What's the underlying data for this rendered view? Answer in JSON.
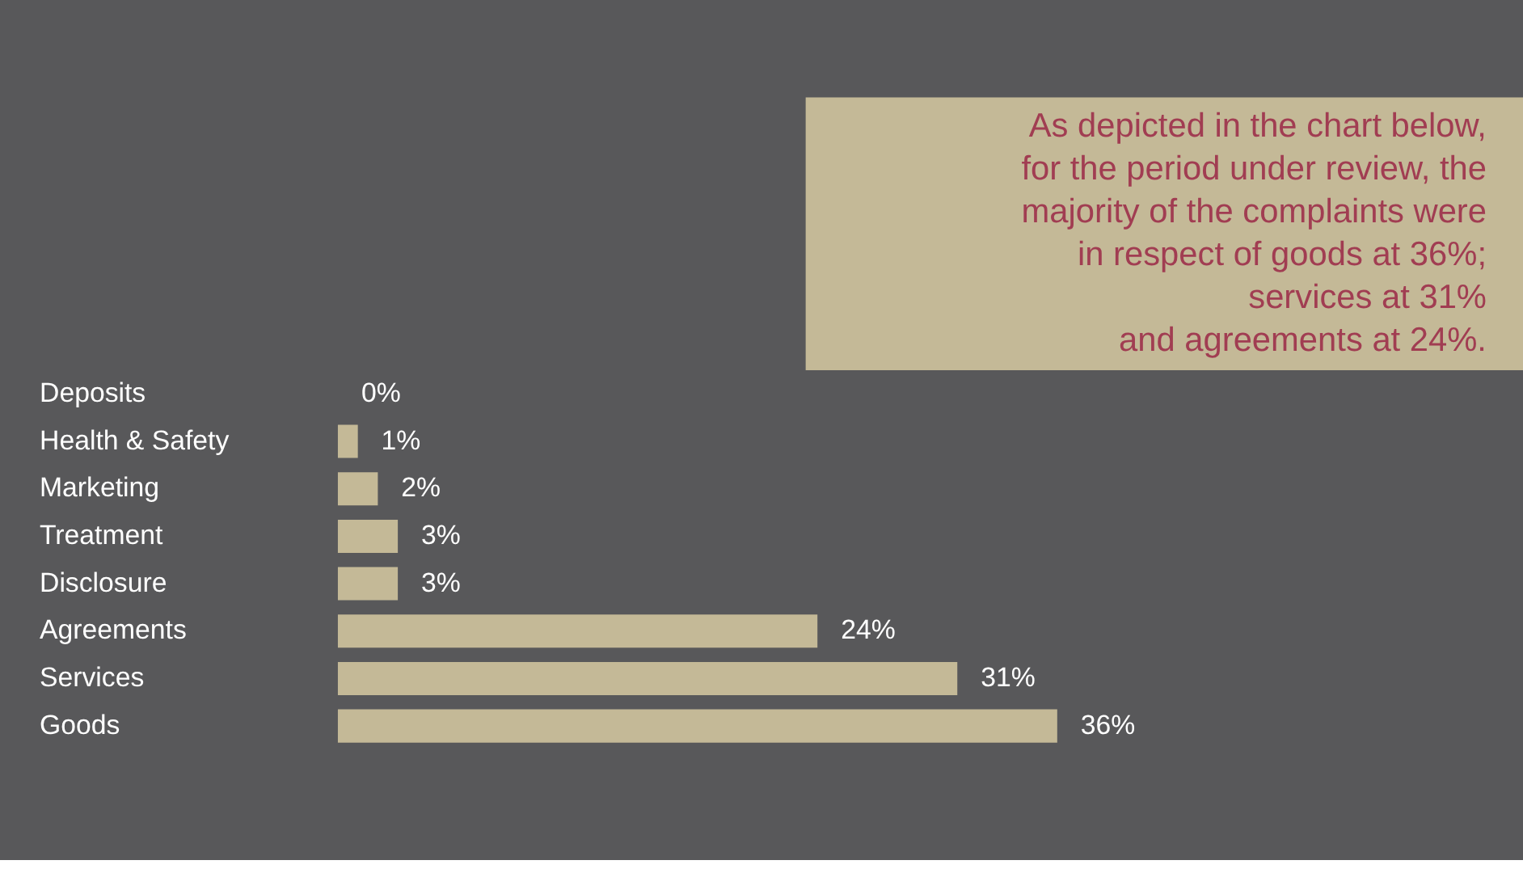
{
  "chart_data": {
    "type": "bar",
    "orientation": "horizontal",
    "categories": [
      "Deposits",
      "Health & Safety",
      "Marketing",
      "Treatment",
      "Disclosure",
      "Agreements",
      "Services",
      "Goods"
    ],
    "values": [
      0,
      1,
      2,
      3,
      3,
      24,
      31,
      36
    ],
    "value_labels": [
      "0%",
      "1%",
      "2%",
      "3%",
      "3%",
      "24%",
      "31%",
      "36%"
    ],
    "color": "#c4b997",
    "annotations": [
      "As depicted in the chart below,\nfor the period under review, the\nmajority of the complaints were\nin respect of goods at 36%;\nservices at 31%\nand agreements at 24%."
    ],
    "grid": false,
    "tick_labels": "y"
  }
}
